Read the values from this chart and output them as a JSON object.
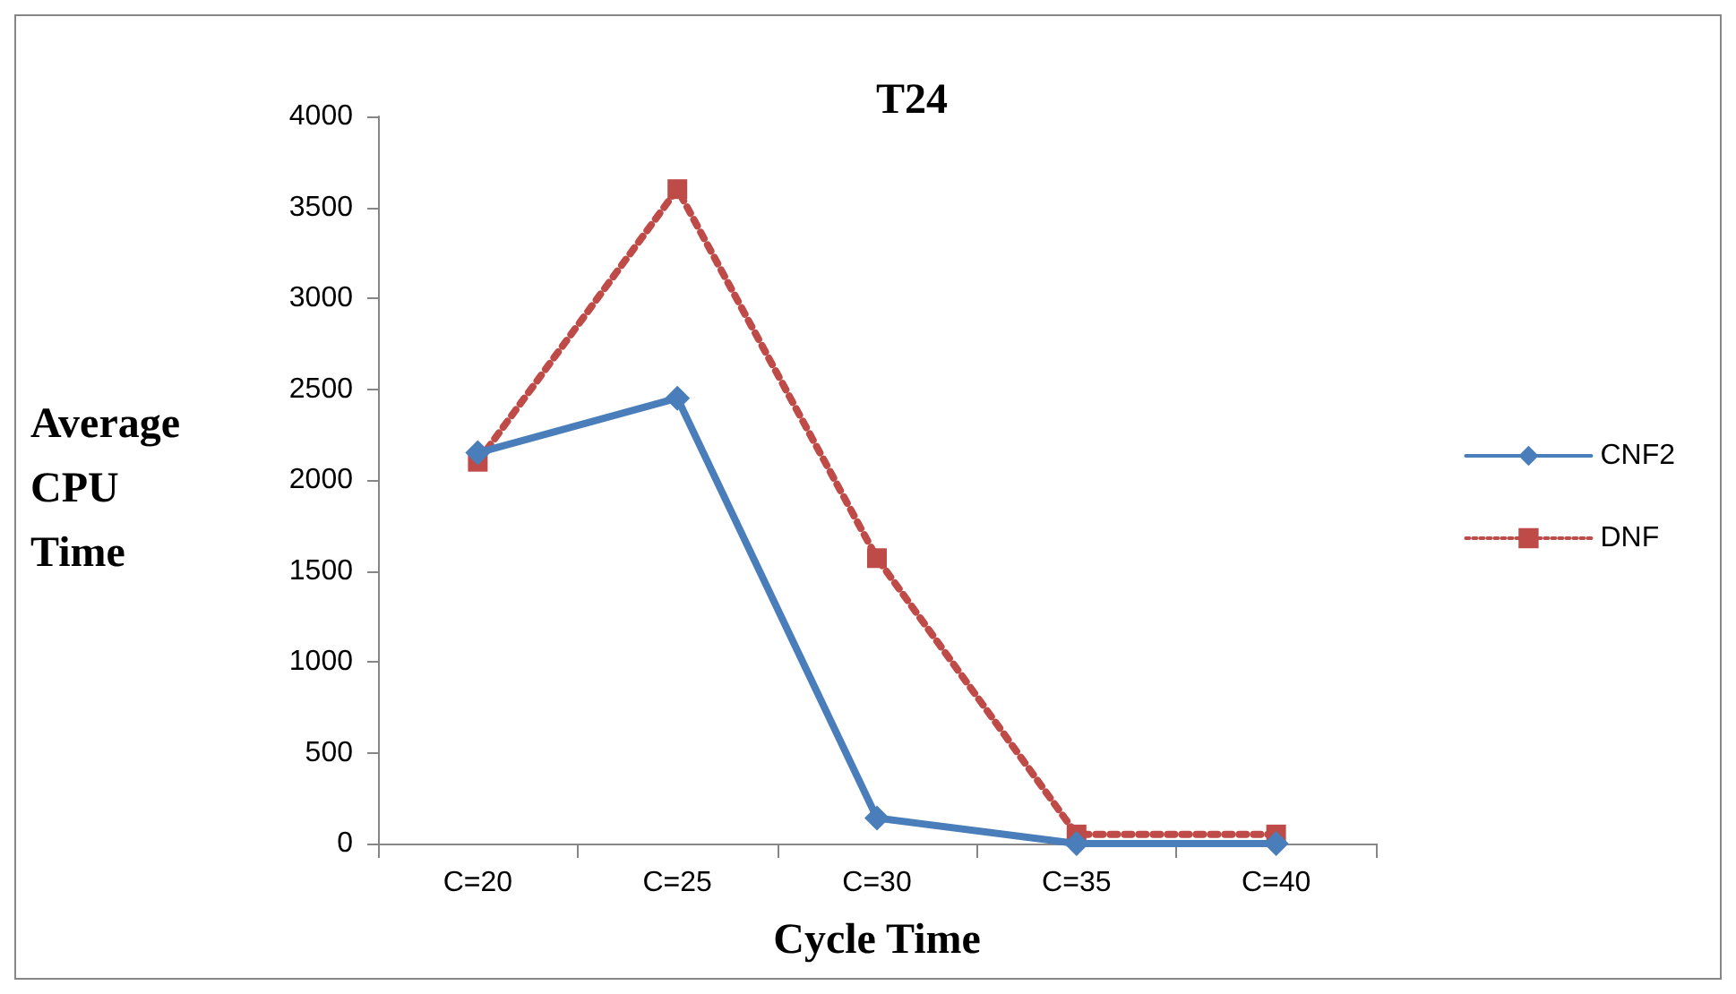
{
  "chart_data": {
    "type": "line",
    "title": "T24",
    "xlabel": "Cycle Time",
    "ylabel": "Average\nCPU\nTime",
    "categories": [
      "C=20",
      "C=25",
      "C=30",
      "C=35",
      "C=40"
    ],
    "series": [
      {
        "name": "CNF2",
        "color": "#4a7ebb",
        "values": [
          2150,
          2450,
          140,
          0,
          0
        ],
        "marker": "diamond",
        "line_style": "solid"
      },
      {
        "name": "DNF",
        "color": "#be4b48",
        "values": [
          2100,
          3600,
          1570,
          50,
          50
        ],
        "marker": "square",
        "line_style": "dotted"
      }
    ],
    "ylim": [
      0,
      4000
    ],
    "yticks": [
      0,
      500,
      1000,
      1500,
      2000,
      2500,
      3000,
      3500,
      4000
    ],
    "grid": false,
    "legend": "right"
  }
}
